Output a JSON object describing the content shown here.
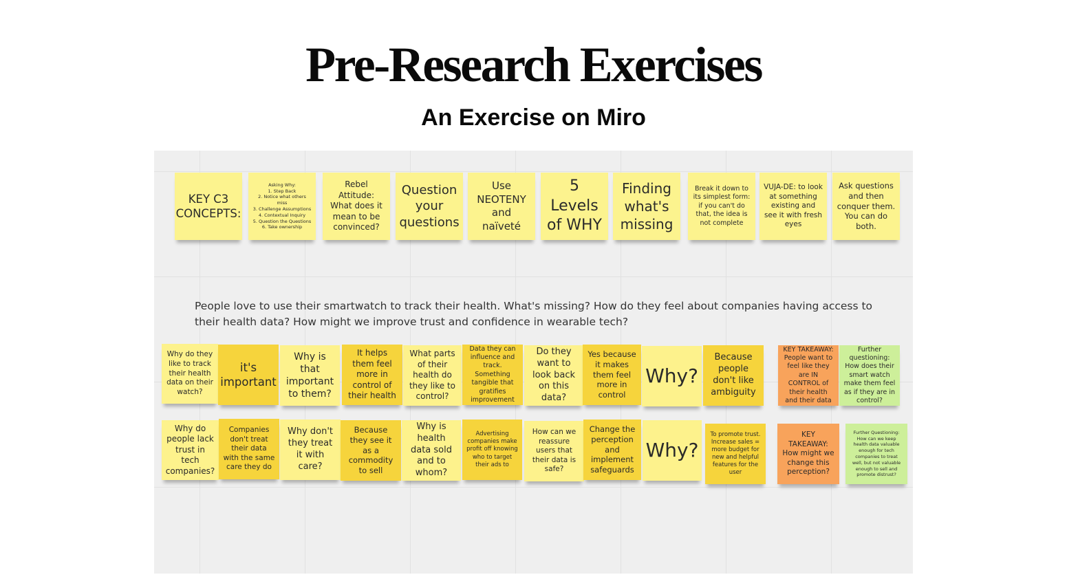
{
  "page": {
    "title": "Pre-Research Exercises",
    "subtitle": "An Exercise on Miro"
  },
  "board": {
    "prompt": "People love to use their smartwatch to track their health. What's missing? How do they feel about companies having access to their health data? How might we improve trust and confidence in wearable tech?",
    "key_concepts": [
      "KEY C3 CONCEPTS:",
      "Asking Why:\n1. Step Back\n2. Notice what others miss\n3. Challenge Assumptions\n4. Contextual Inquiry\n5. Question the Questions\n6. Take ownership",
      "Rebel Attitude: What does it mean to be convinced?",
      "Question your questions",
      "Use NEOTENY and naïveté",
      "5 Levels of WHY",
      "Finding what's missing",
      "Break it down to its simplest form: if you can't do that, the idea is not complete",
      "VUJA-DE: to look at something existing and see it with fresh eyes",
      "Ask questions and then conquer them. You can do both."
    ],
    "row1": [
      "Why do they like to track their health data on their watch?",
      "it's important",
      "Why is that important to them?",
      "It helps them feel more in control of their health",
      "What parts of their health do they like to control?",
      "Data they can influence and track. Something tangible that gratifies improvement",
      "Do they want to look back on this data?",
      "Yes because it makes them feel more in control",
      "Why?",
      "Because people don't like ambiguity",
      "KEY TAKEAWAY: People want to feel like they are IN CONTROL of their health and their data",
      "Further questioning: How does their smart watch make them feel as if they are in control?"
    ],
    "row2": [
      "Why do people lack trust in tech companies?",
      "Companies don't treat their data with the same care they do",
      "Why don't they treat it with care?",
      "Because they see it as a commodity to sell",
      "Why is health data sold and to whom?",
      "Advertising companies make profit off knowing who to target their ads to",
      "How can we reassure users that their data is safe?",
      "Change the perception and implement safeguards",
      "Why?",
      "To promote trust. Increase sales = more budget for new and helpful features for the user",
      "KEY TAKEAWAY: How might we change this perception?",
      "Further Questioning: How can we keep health data valuable enough for tech companies to treat well, but not valuable enough to sell and promote distrust?"
    ]
  },
  "colors": {
    "light_yellow": "#fdf28c",
    "dark_yellow": "#f6d43c",
    "orange": "#f8a35b",
    "green": "#cdef9a",
    "board": "#efefef"
  }
}
